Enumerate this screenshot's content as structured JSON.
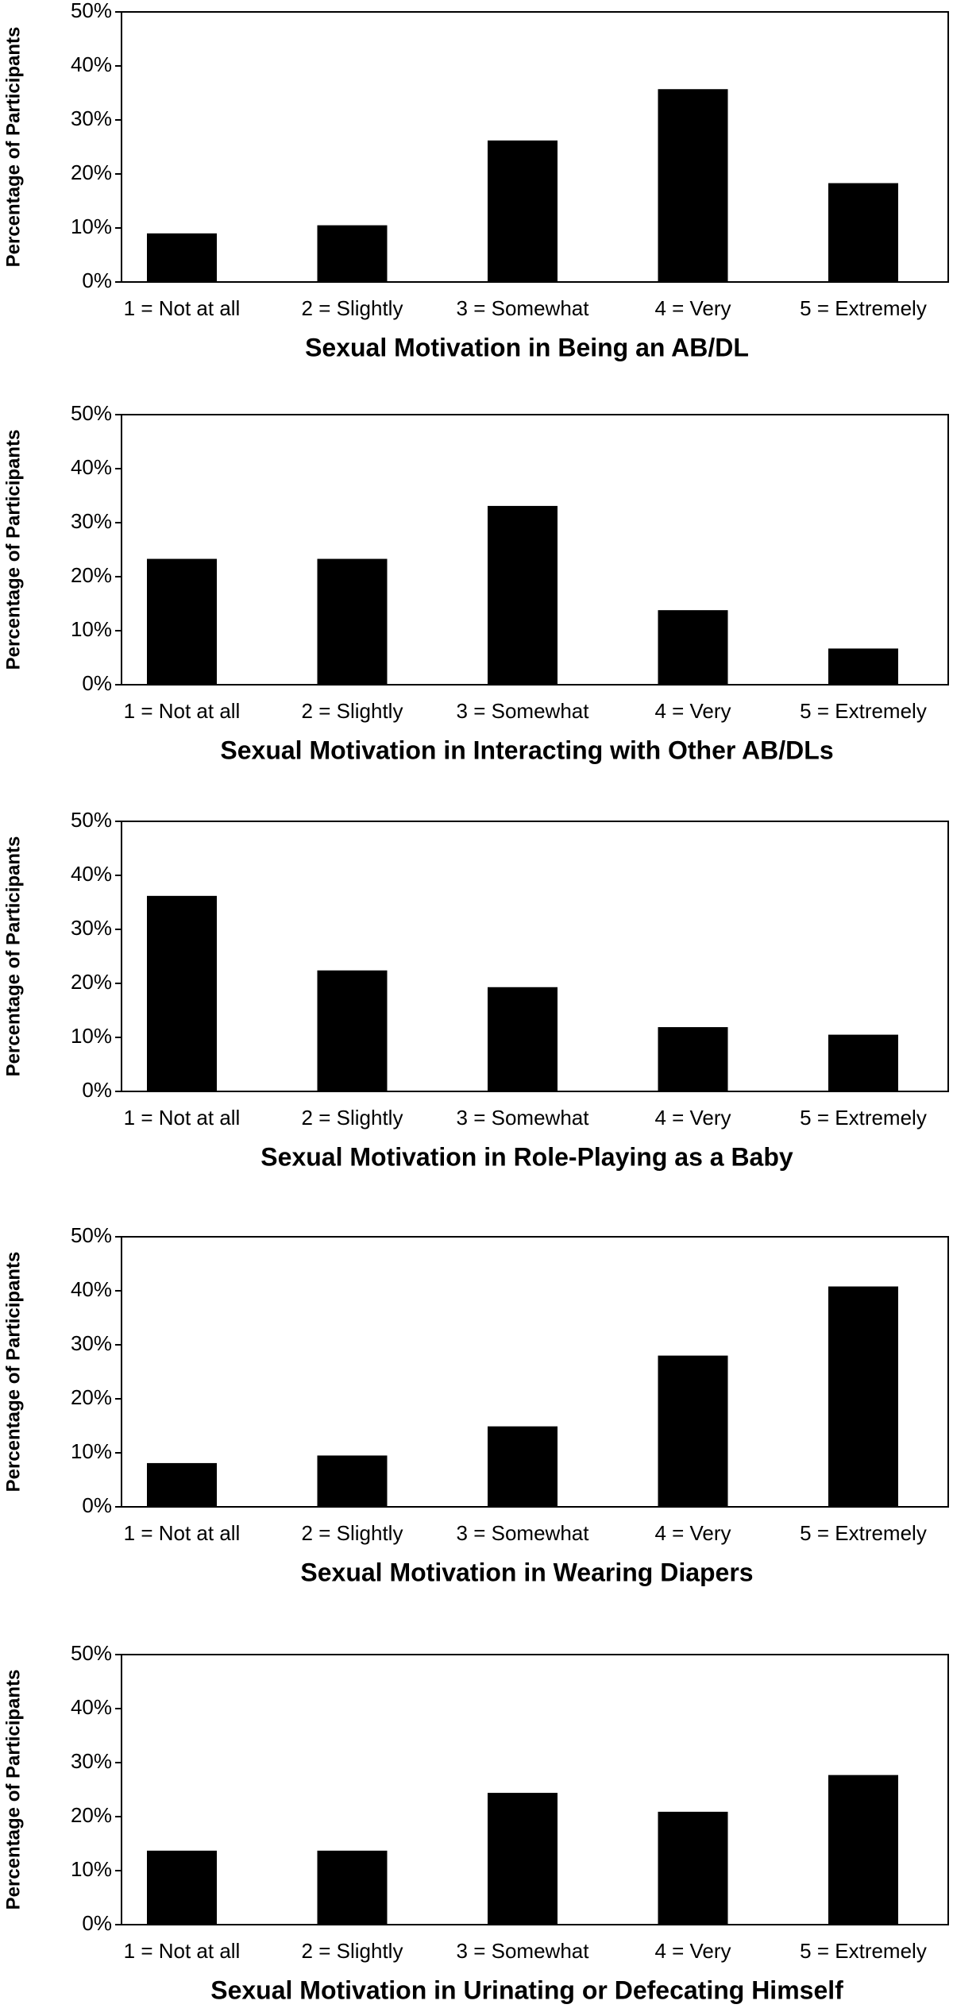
{
  "chart_data": [
    {
      "type": "bar",
      "x_label": "Sexual Motivation in Being an AB/DL",
      "y_label": "Percentage of Participants",
      "categories": [
        "1 = Not at all",
        "2 = Slightly",
        "3 = Somewhat",
        "4 = Very",
        "5 = Extremely"
      ],
      "values": [
        9.0,
        10.5,
        26.2,
        35.7,
        18.3
      ],
      "color": "#000000",
      "ylim": [
        0,
        50
      ],
      "yticks": [
        {
          "value": 0,
          "label": "0%"
        },
        {
          "value": 10,
          "label": "10%"
        },
        {
          "value": 20,
          "label": "20%"
        },
        {
          "value": 30,
          "label": "30%"
        },
        {
          "value": 40,
          "label": "40%"
        },
        {
          "value": 50,
          "label": "50%"
        }
      ]
    },
    {
      "type": "bar",
      "x_label": "Sexual Motivation in Interacting with Other AB/DLs",
      "y_label": "Percentage of Participants",
      "categories": [
        "1 = Not at all",
        "2 = Slightly",
        "3 = Somewhat",
        "4 = Very",
        "5 = Extremely"
      ],
      "values": [
        23.3,
        23.3,
        33.1,
        13.8,
        6.7
      ],
      "color": "#000000",
      "ylim": [
        0,
        50
      ],
      "yticks": [
        {
          "value": 0,
          "label": "0%"
        },
        {
          "value": 10,
          "label": "10%"
        },
        {
          "value": 20,
          "label": "20%"
        },
        {
          "value": 30,
          "label": "30%"
        },
        {
          "value": 40,
          "label": "40%"
        },
        {
          "value": 50,
          "label": "50%"
        }
      ]
    },
    {
      "type": "bar",
      "x_label": "Sexual Motivation in Role-Playing as a Baby",
      "y_label": "Percentage of Participants",
      "categories": [
        "1 = Not at all",
        "2 = Slightly",
        "3 = Somewhat",
        "4 = Very",
        "5 = Extremely"
      ],
      "values": [
        36.2,
        22.4,
        19.3,
        11.9,
        10.5
      ],
      "color": "#000000",
      "ylim": [
        0,
        50
      ],
      "yticks": [
        {
          "value": 0,
          "label": "0%"
        },
        {
          "value": 10,
          "label": "10%"
        },
        {
          "value": 20,
          "label": "20%"
        },
        {
          "value": 30,
          "label": "30%"
        },
        {
          "value": 40,
          "label": "40%"
        },
        {
          "value": 50,
          "label": "50%"
        }
      ]
    },
    {
      "type": "bar",
      "x_label": "Sexual Motivation in Wearing Diapers",
      "y_label": "Percentage of Participants",
      "categories": [
        "1 = Not at all",
        "2 = Slightly",
        "3 = Somewhat",
        "4 = Very",
        "5 = Extremely"
      ],
      "values": [
        8.1,
        9.5,
        14.9,
        28.0,
        40.8
      ],
      "color": "#000000",
      "ylim": [
        0,
        50
      ],
      "yticks": [
        {
          "value": 0,
          "label": "0%"
        },
        {
          "value": 10,
          "label": "10%"
        },
        {
          "value": 20,
          "label": "20%"
        },
        {
          "value": 30,
          "label": "30%"
        },
        {
          "value": 40,
          "label": "40%"
        },
        {
          "value": 50,
          "label": "50%"
        }
      ]
    },
    {
      "type": "bar",
      "x_label": "Sexual Motivation in Urinating or Defecating Himself",
      "y_label": "Percentage of Participants",
      "categories": [
        "1 = Not at all",
        "2 = Slightly",
        "3 = Somewhat",
        "4 = Very",
        "5 = Extremely"
      ],
      "values": [
        13.7,
        13.7,
        24.4,
        20.9,
        27.7
      ],
      "color": "#000000",
      "ylim": [
        0,
        50
      ],
      "yticks": [
        {
          "value": 0,
          "label": "0%"
        },
        {
          "value": 10,
          "label": "10%"
        },
        {
          "value": 20,
          "label": "20%"
        },
        {
          "value": 30,
          "label": "30%"
        },
        {
          "value": 40,
          "label": "40%"
        },
        {
          "value": 50,
          "label": "50%"
        }
      ]
    }
  ]
}
